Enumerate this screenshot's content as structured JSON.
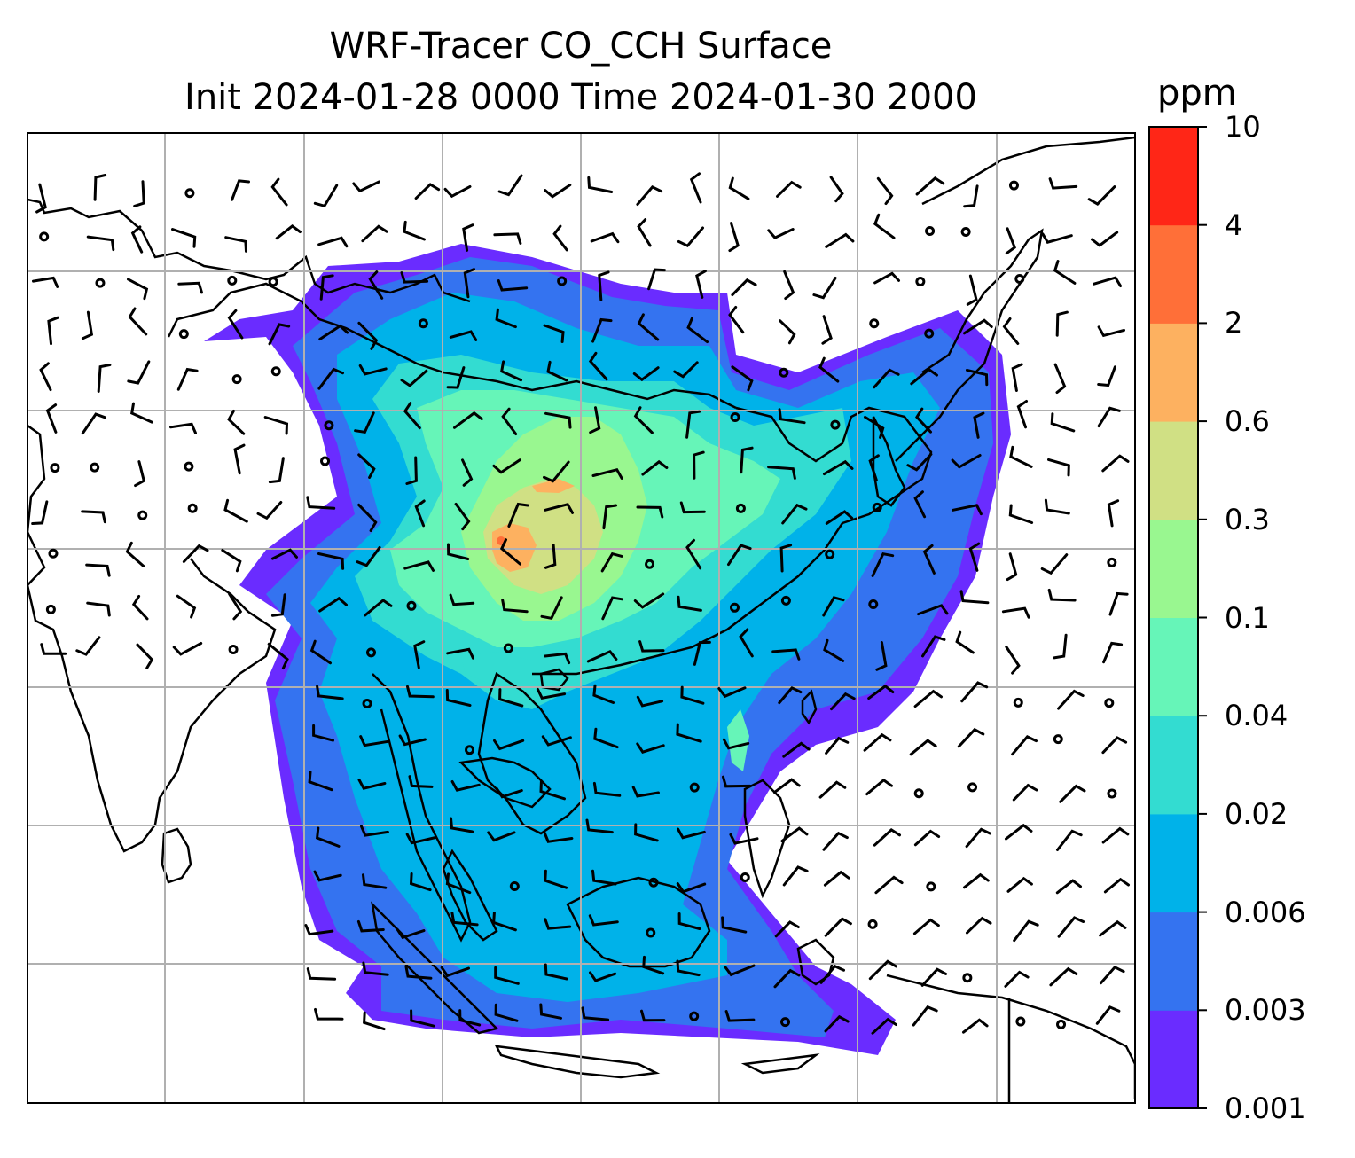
{
  "title": {
    "line1": "WRF-Tracer CO_CCH Surface",
    "line2": "Init 2024-01-28 0000 Time 2024-01-30 2000"
  },
  "colorbar": {
    "unit": "ppm",
    "ticks": [
      "10",
      "4",
      "2",
      "0.6",
      "0.3",
      "0.1",
      "0.04",
      "0.02",
      "0.006",
      "0.003",
      "0.001"
    ],
    "levels": [
      0.001,
      0.003,
      0.006,
      0.02,
      0.04,
      0.1,
      0.3,
      0.6,
      2,
      4,
      10
    ],
    "colors": [
      "#6a2cff",
      "#3473f0",
      "#00b2e9",
      "#33dcd1",
      "#66f5b8",
      "#99f790",
      "#d0e084",
      "#fdb160",
      "#ff6f38",
      "#ff2617"
    ]
  },
  "map": {
    "background": "#ffffff",
    "coastline_color": "#000000",
    "grid_color": "#b0b0b0",
    "field": "CO_CCH surface tracer concentration",
    "overlay": "wind barbs"
  }
}
